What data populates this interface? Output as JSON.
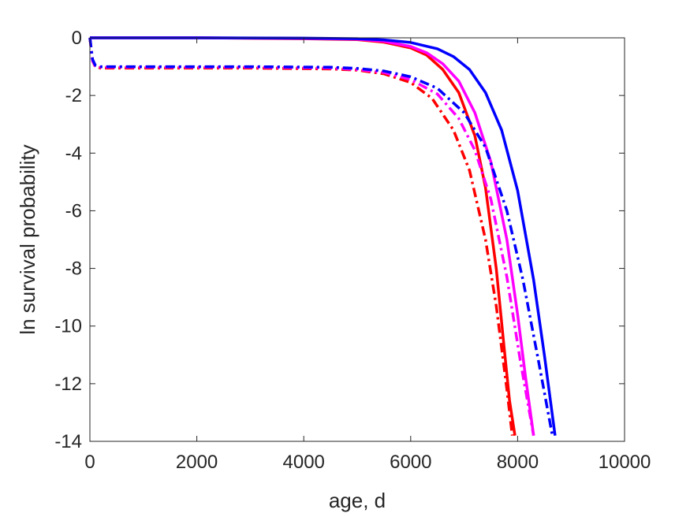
{
  "chart_data": {
    "type": "line",
    "title": "",
    "xlabel": "age, d",
    "ylabel": "ln survival probability",
    "xlim": [
      0,
      10000
    ],
    "ylim": [
      -14,
      0
    ],
    "xticks": [
      0,
      2000,
      4000,
      6000,
      8000,
      10000
    ],
    "yticks": [
      0,
      -2,
      -4,
      -6,
      -8,
      -10,
      -12,
      -14
    ],
    "xtick_labels": [
      "0",
      "2000",
      "4000",
      "6000",
      "8000",
      "10000"
    ],
    "ytick_labels": [
      "0",
      "-2",
      "-4",
      "-6",
      "-8",
      "-10",
      "-12",
      "-14"
    ],
    "grid": false,
    "legend": "none",
    "series": [
      {
        "color": "#ff0000",
        "style": "solid",
        "x": [
          0,
          2000,
          4000,
          5000,
          5500,
          6000,
          6300,
          6600,
          6900,
          7200,
          7400,
          7600,
          7750,
          7850,
          7950
        ],
        "y": [
          0,
          0,
          -0.03,
          -0.06,
          -0.15,
          -0.35,
          -0.6,
          -1.1,
          -1.9,
          -3.4,
          -5.2,
          -8.0,
          -10.8,
          -12.6,
          -13.8
        ]
      },
      {
        "color": "#ff00ff",
        "style": "solid",
        "x": [
          0,
          2000,
          4000,
          5000,
          5500,
          6000,
          6300,
          6600,
          6900,
          7200,
          7500,
          7800,
          8000,
          8150,
          8300
        ],
        "y": [
          0,
          0,
          -0.02,
          -0.05,
          -0.12,
          -0.3,
          -0.52,
          -0.9,
          -1.5,
          -2.6,
          -4.3,
          -7.0,
          -9.6,
          -11.8,
          -13.8
        ]
      },
      {
        "color": "#0000ff",
        "style": "solid",
        "x": [
          0,
          2000,
          4000,
          5000,
          5500,
          6000,
          6500,
          6800,
          7100,
          7400,
          7700,
          8000,
          8300,
          8500,
          8700
        ],
        "y": [
          0,
          0,
          -0.01,
          -0.03,
          -0.07,
          -0.16,
          -0.38,
          -0.65,
          -1.1,
          -1.9,
          -3.2,
          -5.3,
          -8.4,
          -11.0,
          -13.8
        ]
      },
      {
        "color": "#ff0000",
        "style": "dashdot",
        "x": [
          0,
          50,
          100,
          200,
          1000,
          3000,
          4500,
          5000,
          5500,
          6000,
          6400,
          6800,
          7100,
          7400,
          7600,
          7800,
          7900
        ],
        "y": [
          0,
          -0.8,
          -1.0,
          -1.05,
          -1.05,
          -1.05,
          -1.08,
          -1.12,
          -1.25,
          -1.55,
          -2.1,
          -3.2,
          -4.6,
          -7.0,
          -9.3,
          -12.2,
          -13.8
        ]
      },
      {
        "color": "#ff00ff",
        "style": "dashdot",
        "x": [
          0,
          50,
          100,
          200,
          1000,
          3000,
          4500,
          5000,
          5500,
          6000,
          6500,
          6900,
          7200,
          7500,
          7800,
          8050,
          8300
        ],
        "y": [
          0,
          -0.8,
          -0.98,
          -1.02,
          -1.02,
          -1.02,
          -1.05,
          -1.1,
          -1.2,
          -1.45,
          -1.95,
          -2.8,
          -3.9,
          -5.6,
          -8.3,
          -11.2,
          -13.8
        ]
      },
      {
        "color": "#0000ff",
        "style": "dashdot",
        "x": [
          0,
          50,
          100,
          200,
          1000,
          3000,
          4500,
          5000,
          5500,
          6000,
          6500,
          7000,
          7400,
          7800,
          8100,
          8400,
          8650
        ],
        "y": [
          0,
          -0.75,
          -0.95,
          -1.0,
          -1.0,
          -1.0,
          -1.02,
          -1.06,
          -1.15,
          -1.35,
          -1.75,
          -2.6,
          -3.8,
          -6.0,
          -8.4,
          -11.3,
          -13.8
        ]
      }
    ]
  }
}
